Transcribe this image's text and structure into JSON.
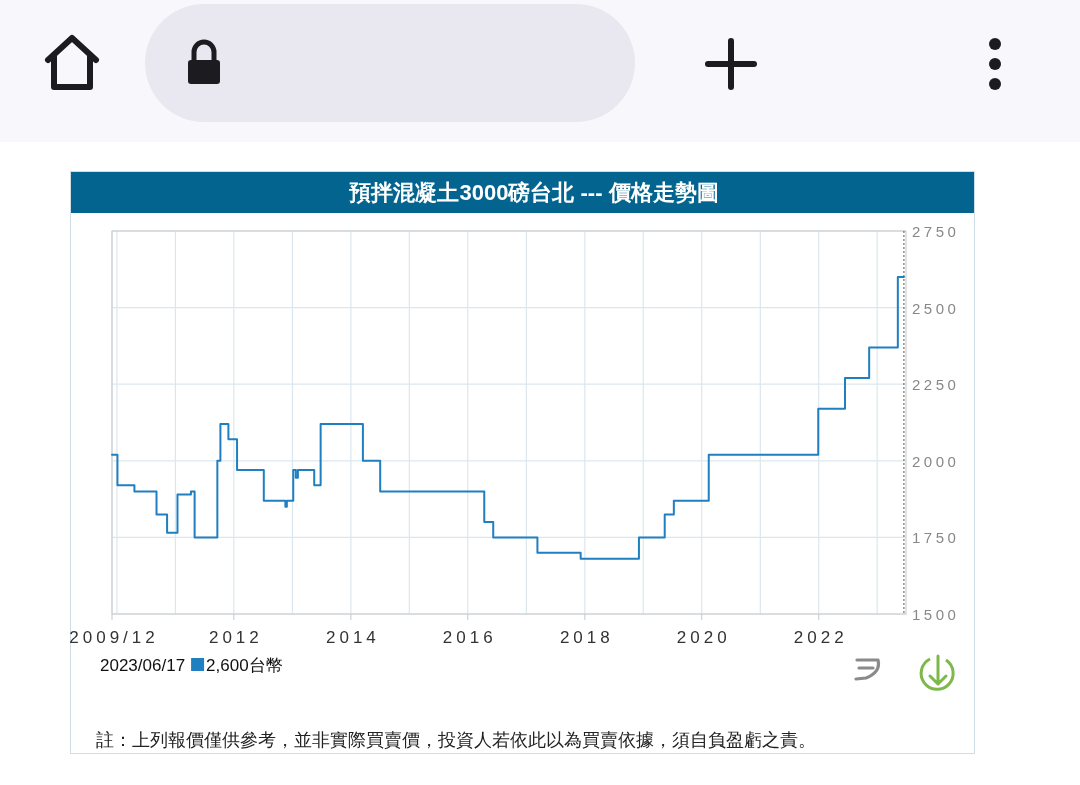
{
  "chart_data": {
    "type": "step",
    "title": "預拌混凝土3000磅台北 --- 價格走勢圖",
    "x": [
      "2009-12-01",
      "2010-01-04",
      "2010-04-20",
      "2010-09-05",
      "2010-11-10",
      "2011-01-14",
      "2011-04-08",
      "2011-05-01",
      "2011-09-20",
      "2011-10-09",
      "2011-11-28",
      "2012-01-21",
      "2012-07-06",
      "2012-11-18",
      "2012-11-27",
      "2013-01-06",
      "2013-01-22",
      "2013-02-04",
      "2013-05-17",
      "2013-06-26",
      "2014-03-17",
      "2014-07-03",
      "2016-04-13",
      "2016-06-08",
      "2017-03-11",
      "2017-12-06",
      "2018-12-05",
      "2019-05-15",
      "2019-07-11",
      "2020-02-14",
      "2021-12-29",
      "2022-06-14",
      "2022-11-12",
      "2023-05-10",
      "2023-06-17"
    ],
    "series": [
      {
        "name": "2,600台幣",
        "color": "#1f7fc0",
        "values": [
          2020,
          1920,
          1900,
          1825,
          1765,
          1890,
          1900,
          1750,
          2000,
          2120,
          2070,
          1970,
          1870,
          1850,
          1870,
          1970,
          1945,
          1970,
          1920,
          2120,
          2000,
          1900,
          1800,
          1750,
          1700,
          1680,
          1750,
          1825,
          1870,
          2020,
          2170,
          2270,
          2370,
          2600,
          2600
        ]
      }
    ],
    "legend": "bottom left",
    "legend_title": "2023/06/17",
    "xlim": [
      "2009-12-01",
      "2023-06-30"
    ],
    "xticks": [
      {
        "value": "2009-12-01",
        "label": "2009/12"
      },
      {
        "value": "2010-01-01",
        "label": null
      },
      {
        "value": "2011-01-01",
        "label": null
      },
      {
        "value": "2012-01-01",
        "label": "2012"
      },
      {
        "value": "2013-01-01",
        "label": null
      },
      {
        "value": "2014-01-01",
        "label": "2014"
      },
      {
        "value": "2015-01-01",
        "label": null
      },
      {
        "value": "2016-01-01",
        "label": "2016"
      },
      {
        "value": "2017-01-01",
        "label": null
      },
      {
        "value": "2018-01-01",
        "label": "2018"
      },
      {
        "value": "2019-01-01",
        "label": null
      },
      {
        "value": "2020-01-01",
        "label": "2020"
      },
      {
        "value": "2021-01-01",
        "label": null
      },
      {
        "value": "2022-01-01",
        "label": "2022"
      },
      {
        "value": "2023-01-01",
        "label": null
      }
    ],
    "ylim": [
      1500,
      2750
    ],
    "yticks": [
      1500,
      1750,
      2000,
      2250,
      2500,
      2750
    ],
    "grid": true,
    "line_style": "solid",
    "ref_lines": [
      {
        "axis": "x",
        "value": "2023-06-17",
        "color": "#555555",
        "line_style": "dotted"
      }
    ],
    "annotations": [
      "註：上列報價僅供參考，並非實際買賣價，投資人若依此以為買賣依據，須自負盈虧之責。"
    ]
  }
}
